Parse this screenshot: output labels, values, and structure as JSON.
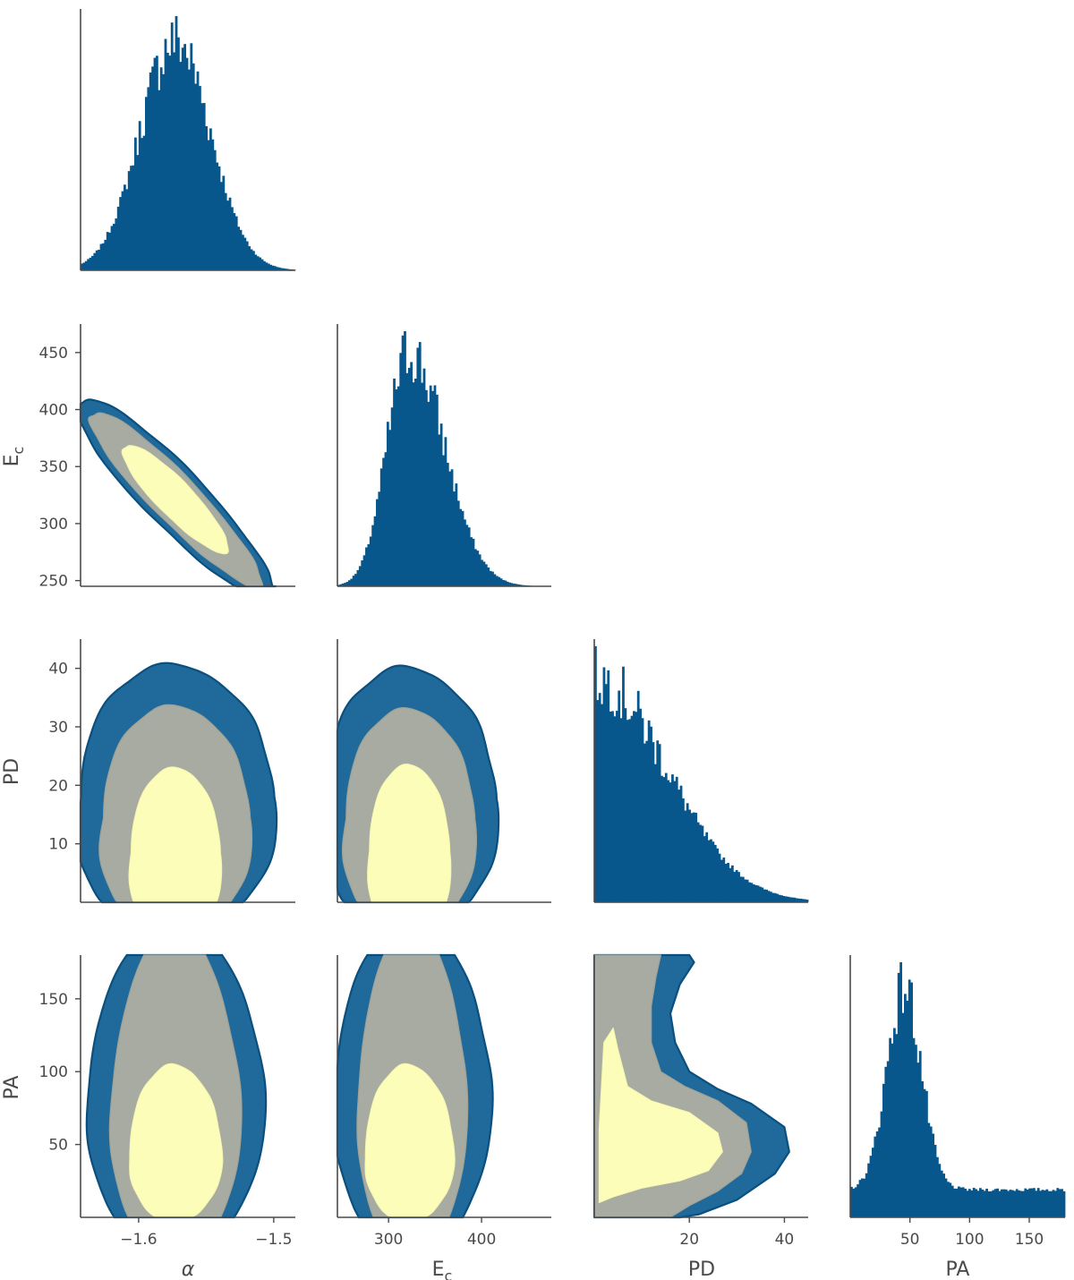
{
  "colors": {
    "histogram": "#08578c",
    "contour_outer_fill": "#1f6a9b",
    "contour_outer_edge": "#0b4f7e",
    "contour_mid_fill": "#a7aba2",
    "contour_inner_fill": "#fbfdb8",
    "axis": "#4a4a4a"
  },
  "chart_data": {
    "type": "corner",
    "parameters": [
      {
        "key": "alpha",
        "label": "α",
        "italic": true,
        "range": [
          -1.643,
          -1.484
        ],
        "ticks": [
          -1.6,
          -1.5
        ],
        "tick_labels": [
          "−1.6",
          "−1.5"
        ]
      },
      {
        "key": "Ec",
        "label": "E",
        "subscript": "c",
        "range": [
          245,
          475
        ],
        "ticks": [
          250,
          300,
          350,
          400,
          450
        ],
        "tick_labels": [
          "250",
          "300",
          "350",
          "400",
          "450"
        ],
        "x_tick_labels": [
          "300",
          "400"
        ],
        "x_ticks": [
          300,
          400
        ]
      },
      {
        "key": "PD",
        "label": "PD",
        "range": [
          0,
          45
        ],
        "ticks": [
          10,
          20,
          30,
          40
        ],
        "tick_labels": [
          "10",
          "20",
          "30",
          "40"
        ],
        "x_ticks": [
          20,
          40
        ],
        "x_tick_labels": [
          "20",
          "40"
        ]
      },
      {
        "key": "PA",
        "label": "PA",
        "range": [
          0,
          180
        ],
        "ticks": [
          50,
          100,
          150
        ],
        "tick_labels": [
          "50",
          "100",
          "150"
        ],
        "x_ticks": [
          50,
          100,
          150
        ],
        "x_tick_labels": [
          "50",
          "100",
          "150"
        ]
      }
    ],
    "marginals": {
      "alpha": {
        "peak_mode": -1.573,
        "sigma": 0.026,
        "shape": "gaussian",
        "bins": 100
      },
      "Ec": {
        "peak_mode": 322,
        "sigma": 28,
        "skew": "right",
        "bins": 100
      },
      "PD": {
        "shape": "half-gaussian",
        "peak_at": 0,
        "sigma": 15,
        "bins": 100
      },
      "PA": {
        "shape": "peak-plus-floor",
        "peak_mode": 45,
        "sigma": 16,
        "floor": 0.12,
        "bins": 100
      }
    },
    "contour_levels": [
      "outer",
      "middle",
      "inner"
    ],
    "contours": {
      "Ec_vs_alpha": {
        "correlation": "negative",
        "center": [
          -1.573,
          322
        ]
      },
      "PD_vs_alpha": {
        "center": [
          -1.573,
          10
        ]
      },
      "PD_vs_Ec": {
        "center": [
          322,
          10
        ]
      },
      "PA_vs_alpha": {
        "center": [
          -1.573,
          45
        ]
      },
      "PA_vs_Ec": {
        "center": [
          322,
          45
        ]
      },
      "PA_vs_PD": {
        "center": [
          10,
          45
        ]
      }
    }
  }
}
